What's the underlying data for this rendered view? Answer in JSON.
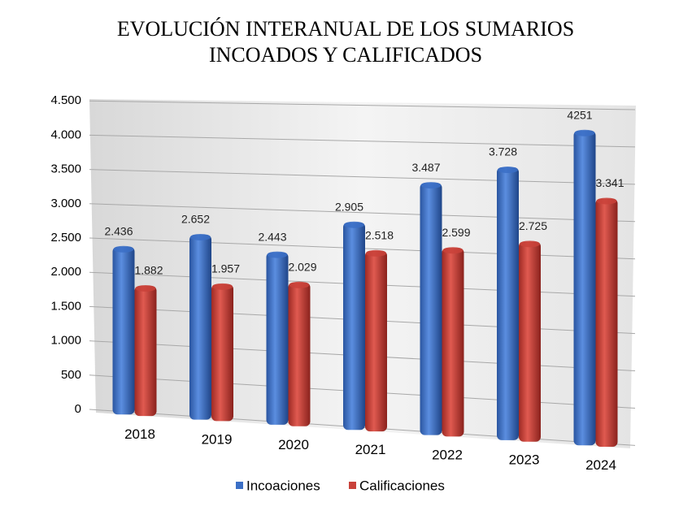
{
  "chart_data": {
    "type": "bar",
    "title": [
      "EVOLUCIÓN INTERANUAL DE LOS SUMARIOS",
      "INCOADOS Y CALIFICADOS"
    ],
    "categories": [
      "2018",
      "2019",
      "2020",
      "2021",
      "2022",
      "2023",
      "2024"
    ],
    "series": [
      {
        "name": "Incoaciones",
        "color": "#3b6fc6",
        "values": [
          2436,
          2652,
          2443,
          2905,
          3487,
          3728,
          4251
        ],
        "value_labels": [
          "2.436",
          "2.652",
          "2.443",
          "2.905",
          "3.487",
          "3.728",
          "4251"
        ]
      },
      {
        "name": "Calificaciones",
        "color": "#c9423a",
        "values": [
          1882,
          1957,
          2029,
          2518,
          2599,
          2725,
          3341
        ],
        "value_labels": [
          "1.882",
          "1.957",
          "2.029",
          "2.518",
          "2.599",
          "2.725",
          "3.341"
        ]
      }
    ],
    "ylim": [
      0,
      4500
    ],
    "yticks": [
      0,
      500,
      {
        "value": 1000,
        "label": "1.000"
      },
      {
        "value": 1500,
        "label": "1.500"
      },
      {
        "value": 2000,
        "label": "2.000"
      },
      {
        "value": 2500,
        "label": "2.500"
      },
      {
        "value": 3000,
        "label": "3.000"
      },
      {
        "value": 3500,
        "label": "3.500"
      },
      {
        "value": 4000,
        "label": "4.000"
      },
      {
        "value": 4500,
        "label": "4.500"
      }
    ],
    "grid": true,
    "legend": "bottom"
  }
}
